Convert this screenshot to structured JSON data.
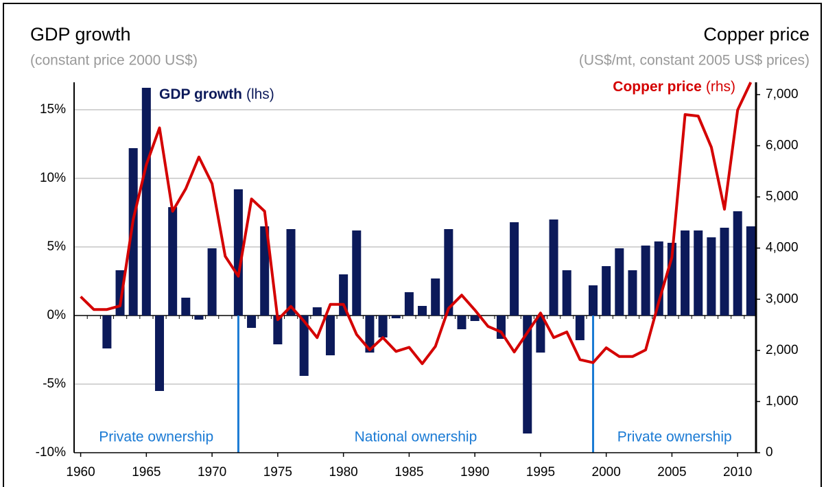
{
  "chart_data": {
    "type": "bar_line",
    "title": "GDP growth",
    "subtitle": "(constant price 2000 US$)",
    "title_right": "Copper price",
    "subtitle_right": "(US$/mt, constant 2005 US$ prices)",
    "x": [
      1960,
      1961,
      1962,
      1963,
      1964,
      1965,
      1966,
      1967,
      1968,
      1969,
      1970,
      1971,
      1972,
      1973,
      1974,
      1975,
      1976,
      1977,
      1978,
      1979,
      1980,
      1981,
      1982,
      1983,
      1984,
      1985,
      1986,
      1987,
      1988,
      1989,
      1990,
      1991,
      1992,
      1993,
      1994,
      1995,
      1996,
      1997,
      1998,
      1999,
      2000,
      2001,
      2002,
      2003,
      2004,
      2005,
      2006,
      2007,
      2008,
      2009,
      2010,
      2011
    ],
    "series": [
      {
        "name": "GDP growth",
        "legend_suffix": "(lhs)",
        "type": "bar",
        "color": "#0c1a5a",
        "values": [
          null,
          null,
          -2.4,
          3.3,
          12.2,
          16.6,
          -5.5,
          7.9,
          1.3,
          -0.3,
          4.9,
          null,
          9.2,
          -0.9,
          6.5,
          -2.1,
          6.3,
          -4.4,
          0.6,
          -2.9,
          3.0,
          6.2,
          -2.7,
          -1.6,
          -0.2,
          1.7,
          0.7,
          2.7,
          6.3,
          -1.0,
          -0.4,
          null,
          -1.7,
          6.8,
          -8.6,
          -2.7,
          7.0,
          3.3,
          -1.8,
          2.2,
          3.6,
          4.9,
          3.3,
          5.1,
          5.4,
          5.3,
          6.2,
          6.2,
          5.7,
          6.4,
          7.6,
          6.5
        ]
      },
      {
        "name": "Copper price",
        "legend_suffix": "(rhs)",
        "type": "line",
        "axis": "y2",
        "color": "#d40000",
        "values": [
          3050,
          2800,
          2800,
          2870,
          4560,
          5630,
          6350,
          4720,
          5160,
          5780,
          5260,
          3840,
          3450,
          4960,
          4720,
          2600,
          2860,
          2570,
          2250,
          2900,
          2900,
          2310,
          2010,
          2250,
          1980,
          2060,
          1740,
          2080,
          2820,
          3080,
          2790,
          2470,
          2360,
          1970,
          2350,
          2730,
          2250,
          2360,
          1820,
          1760,
          2050,
          1880,
          1880,
          2010,
          2950,
          3820,
          6610,
          6580,
          5970,
          4760,
          6700,
          7240
        ]
      }
    ],
    "xlim": [
      1959.5,
      2011.4
    ],
    "xticks": [
      1960,
      1965,
      1970,
      1975,
      1980,
      1985,
      1990,
      1995,
      2000,
      2005,
      2010
    ],
    "ylim": [
      -10,
      17
    ],
    "yticks": [
      {
        "value": -10,
        "label": "-10%"
      },
      {
        "value": -5,
        "label": "-5%"
      },
      {
        "value": 0,
        "label": "0%"
      },
      {
        "value": 5,
        "label": "5%"
      },
      {
        "value": 10,
        "label": "10%"
      },
      {
        "value": 15,
        "label": "15%"
      }
    ],
    "y2lim": [
      0,
      7240
    ],
    "y2ticks": [
      0,
      {
        "value": 1000,
        "label": "1,000"
      },
      {
        "value": 2000,
        "label": "2,000"
      },
      {
        "value": 3000,
        "label": "3,000"
      },
      {
        "value": 4000,
        "label": "4,000"
      },
      {
        "value": 5000,
        "label": "5,000"
      },
      {
        "value": 6000,
        "label": "6,000"
      },
      {
        "value": 7000,
        "label": "7,000"
      }
    ],
    "grid": true,
    "dividers": [
      1972,
      1999
    ],
    "divider_color": "#1a7ad4",
    "regions": [
      "Private ownership",
      "National ownership",
      "Private ownership"
    ]
  }
}
